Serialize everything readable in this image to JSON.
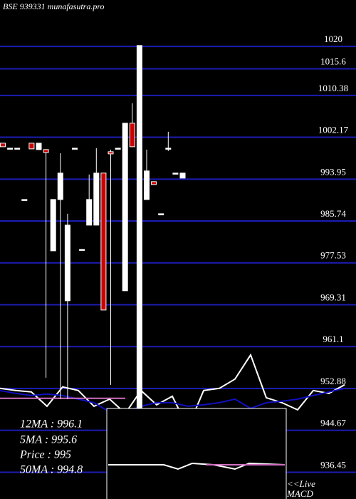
{
  "chart_data": {
    "type": "candlestick",
    "title": "BSE 939331 munafasutra.pro",
    "ylim": [
      931.2,
      1029.1
    ],
    "yticks": [
      1020,
      1015.6,
      1010.38,
      1002.17,
      993.95,
      985.74,
      977.53,
      969.31,
      961.1,
      952.88,
      944.67,
      936.45
    ],
    "grid": true,
    "up_color": "#ffffff",
    "down_color": "#cc0000",
    "grid_color": "#1c1cb4",
    "open": [
      1001.01,
      1000.03,
      1000.03,
      989.96,
      1001.01,
      999.75,
      999.75,
      979.89,
      989.96,
      970.1,
      1000.03,
      980.17,
      984.93,
      984.93,
      995.14,
      999.33,
      1000.03,
      972.06,
      1004.93,
      948.7,
      989.96,
      993.46,
      987.16,
      1000.03,
      995.14,
      994.16
    ],
    "high": [
      1001.01,
      1000.03,
      1000.03,
      989.96,
      1001.01,
      1001.01,
      999.75,
      989.96,
      999.05,
      987.16,
      1000.03,
      980.17,
      994.86,
      1000.03,
      995.14,
      999.75,
      1000.03,
      1004.93,
      1008.84,
      1020.17,
      999.75,
      993.46,
      987.16,
      1003.25,
      995.14,
      995.14
    ],
    "low": [
      1000.31,
      1000.03,
      1000.03,
      989.96,
      999.89,
      999.75,
      954.99,
      979.89,
      950.8,
      950.8,
      1000.03,
      980.17,
      984.93,
      984.93,
      968.28,
      953.6,
      1000.03,
      972.06,
      1000.31,
      948.7,
      989.96,
      992.9,
      987.16,
      999.47,
      995.14,
      994.16
    ],
    "close": [
      1000.31,
      1000.03,
      1000.03,
      989.96,
      999.89,
      1001.01,
      999.19,
      989.96,
      995.14,
      984.93,
      1000.03,
      980.17,
      989.96,
      995.14,
      968.28,
      998.91,
      1000.03,
      1004.93,
      1000.31,
      1020.17,
      995.56,
      992.9,
      987.16,
      1000.03,
      995.14,
      995.14
    ],
    "series": [
      {
        "color": "#ffffff",
        "values": [
          952.9,
          952.48,
          952.2,
          949.4,
          953.18,
          952.48,
          949.4,
          950.8,
          948.0,
          952.48,
          949.68,
          951.36,
          945.21,
          952.48,
          952.9,
          954.72,
          959.47,
          951.08,
          950.1,
          948.7,
          952.48,
          951.92,
          953.6
        ]
      },
      {
        "color": "#1010c0",
        "values": [
          952.48,
          951.92,
          951.5,
          951.78,
          951.5,
          950.8,
          950.1,
          948.28,
          948.28,
          949.4,
          950.1,
          950.1,
          949.4,
          949.68,
          950.1,
          950.8,
          948.98,
          950.1,
          950.38,
          950.8,
          951.5,
          952.2,
          952.9
        ]
      },
      {
        "color": "#d070c0",
        "values": [
          950.96,
          950.96,
          950.96,
          950.96,
          950.96,
          950.96,
          950.96,
          950.96,
          950.96,
          null,
          null,
          null,
          null,
          null,
          null,
          null,
          null,
          null,
          null,
          null,
          null,
          null,
          null
        ]
      }
    ],
    "annotations": [
      "12MA : 996.1",
      "5MA : 995.6",
      "Price  : 995",
      "50MA : 994.8"
    ],
    "macd_label": [
      "<<Live",
      "MACD"
    ]
  }
}
